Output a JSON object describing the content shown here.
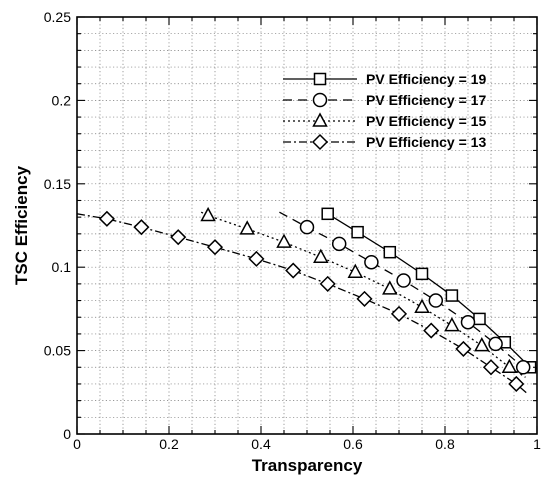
{
  "chart_data": {
    "type": "line",
    "title": "",
    "xlabel": "Transparency",
    "ylabel": "TSC Efficiency",
    "xlim": [
      0,
      1
    ],
    "ylim": [
      0,
      0.25
    ],
    "x_ticks": [
      0,
      0.2,
      0.4,
      0.6,
      0.8,
      1
    ],
    "x_tick_labels": [
      "0",
      "0.2",
      "0.4",
      "0.6",
      "0.8",
      "1"
    ],
    "y_ticks": [
      0,
      0.05,
      0.1,
      0.15,
      0.2,
      0.25
    ],
    "y_tick_labels": [
      "0",
      "0.05",
      "0.1",
      "0.15",
      "0.2",
      "0.25"
    ],
    "grid": true,
    "legend_position": "top-right",
    "series": [
      {
        "name": "PV Efficiency = 19",
        "marker": "square",
        "dash": "solid",
        "x": [
          0.545,
          0.61,
          0.68,
          0.75,
          0.815,
          0.875,
          0.93,
          0.985
        ],
        "y": [
          0.132,
          0.121,
          0.109,
          0.096,
          0.083,
          0.069,
          0.055,
          0.04
        ],
        "line_start": [
          0.535,
          0.133
        ],
        "line_end": [
          1.0,
          0.039
        ]
      },
      {
        "name": "PV Efficiency = 17",
        "marker": "circle",
        "dash": "dash",
        "x": [
          0.5,
          0.57,
          0.64,
          0.71,
          0.78,
          0.85,
          0.91,
          0.97
        ],
        "y": [
          0.124,
          0.114,
          0.103,
          0.092,
          0.08,
          0.067,
          0.054,
          0.04
        ],
        "line_start": [
          0.44,
          0.133
        ],
        "line_end": [
          0.99,
          0.038
        ]
      },
      {
        "name": "PV Efficiency = 15",
        "marker": "triangle",
        "dash": "dot",
        "x": [
          0.285,
          0.37,
          0.45,
          0.53,
          0.605,
          0.68,
          0.75,
          0.815,
          0.88,
          0.94
        ],
        "y": [
          0.131,
          0.123,
          0.115,
          0.106,
          0.097,
          0.087,
          0.076,
          0.065,
          0.053,
          0.04
        ],
        "line_start": [
          0.27,
          0.133
        ],
        "line_end": [
          0.975,
          0.034
        ]
      },
      {
        "name": "PV Efficiency = 13",
        "marker": "diamond",
        "dash": "dashdot",
        "x": [
          0.065,
          0.14,
          0.22,
          0.3,
          0.39,
          0.47,
          0.545,
          0.625,
          0.7,
          0.77,
          0.84,
          0.9,
          0.955
        ],
        "y": [
          0.129,
          0.124,
          0.118,
          0.112,
          0.105,
          0.098,
          0.09,
          0.081,
          0.072,
          0.062,
          0.051,
          0.04,
          0.03
        ],
        "line_start": [
          0.0,
          0.132
        ],
        "line_end": [
          0.98,
          0.024
        ]
      }
    ]
  }
}
